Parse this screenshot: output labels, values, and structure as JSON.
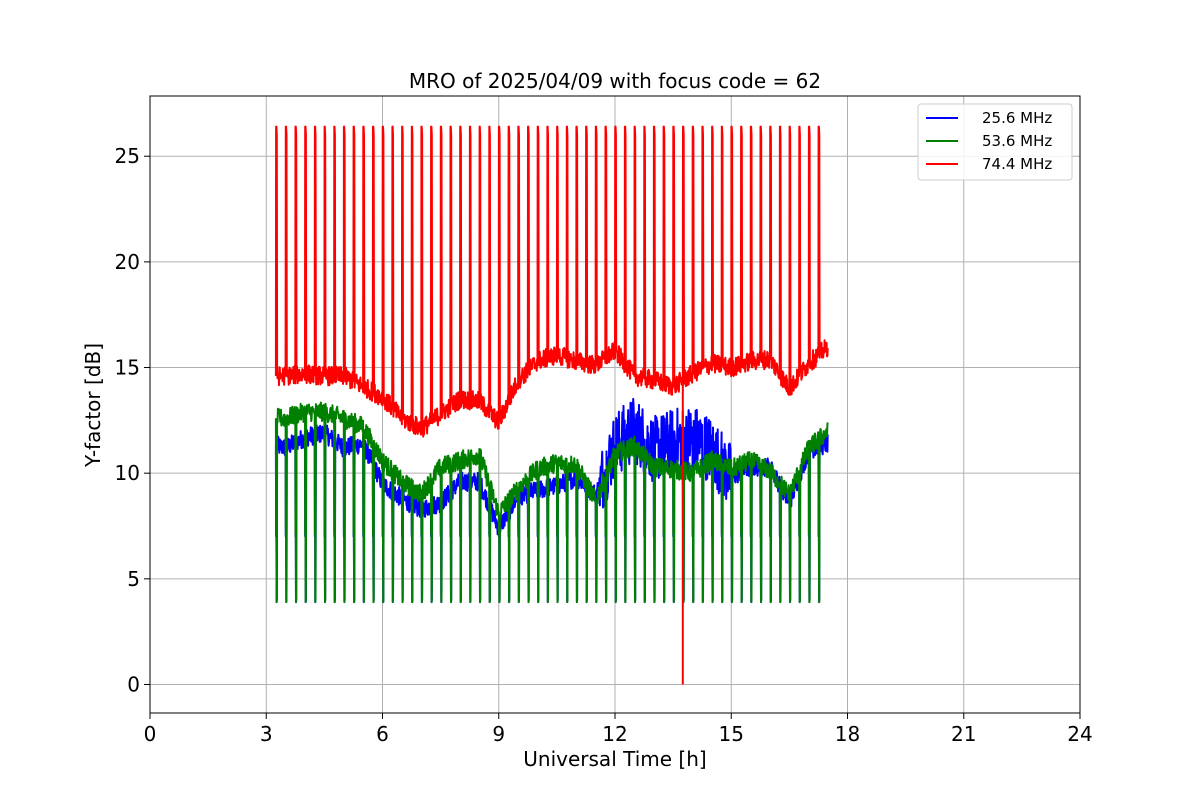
{
  "chart_data": {
    "type": "line",
    "title": "MRO of 2025/04/09 with focus code = 62",
    "xlabel": "Universal Time [h]",
    "ylabel": "Y-factor [dB]",
    "xlim": [
      0,
      24
    ],
    "ylim": [
      -1.35,
      27.85
    ],
    "x_ticks": [
      0,
      3,
      6,
      9,
      12,
      15,
      18,
      21,
      24
    ],
    "y_ticks": [
      0,
      5,
      10,
      15,
      20,
      25
    ],
    "x_tick_labels": [
      "0",
      "3",
      "6",
      "9",
      "12",
      "15",
      "18",
      "21",
      "24"
    ],
    "y_tick_labels": [
      "0",
      "5",
      "10",
      "15",
      "20",
      "25"
    ],
    "grid": true,
    "legend_position": "top-right",
    "data_range_hours": [
      3.25,
      17.5
    ],
    "calibration_period_hours": 0.25,
    "calibration_levels": {
      "peak": 26.4,
      "low": 3.9
    },
    "series": [
      {
        "name": "25.6 MHz",
        "color": "#0000ff",
        "cal_high": 7.0,
        "x": [
          3.25,
          3.5,
          4.0,
          4.5,
          5.0,
          5.5,
          6.0,
          6.5,
          7.0,
          7.5,
          8.0,
          8.5,
          9.0,
          9.5,
          10.0,
          10.5,
          11.0,
          11.5,
          12.0,
          12.5,
          13.0,
          13.5,
          14.0,
          14.5,
          15.0,
          15.5,
          16.0,
          16.5,
          17.0,
          17.5
        ],
        "y": [
          11.3,
          11.2,
          11.7,
          11.9,
          11.2,
          11.4,
          9.5,
          8.8,
          8.3,
          8.6,
          9.6,
          9.6,
          7.4,
          8.9,
          9.2,
          9.4,
          9.8,
          9.0,
          11.3,
          12.1,
          11.1,
          11.5,
          11.7,
          11.1,
          9.8,
          10.3,
          10.3,
          8.6,
          11.1,
          11.4
        ]
      },
      {
        "name": "53.6 MHz",
        "color": "#008000",
        "cal_high": 7.1,
        "x": [
          3.25,
          3.5,
          4.0,
          4.5,
          5.0,
          5.5,
          6.0,
          6.5,
          7.0,
          7.5,
          8.0,
          8.5,
          9.0,
          9.5,
          10.0,
          10.5,
          11.0,
          11.5,
          12.0,
          12.5,
          13.0,
          13.5,
          14.0,
          14.5,
          15.0,
          15.5,
          16.0,
          16.5,
          17.0,
          17.5
        ],
        "y": [
          12.6,
          12.6,
          12.9,
          12.9,
          12.6,
          12.2,
          10.6,
          9.6,
          9.0,
          10.3,
          10.6,
          10.9,
          8.1,
          9.3,
          10.2,
          10.5,
          10.4,
          8.7,
          10.9,
          11.3,
          10.3,
          10.2,
          10.0,
          10.6,
          10.2,
          10.6,
          10.1,
          9.0,
          11.2,
          12.0
        ]
      },
      {
        "name": "74.4 MHz",
        "color": "#ff0000",
        "cal_high": 26.4,
        "x": [
          3.25,
          3.5,
          4.0,
          4.5,
          5.0,
          5.5,
          6.0,
          6.5,
          7.0,
          7.5,
          8.0,
          8.5,
          9.0,
          9.5,
          10.0,
          10.5,
          11.0,
          11.5,
          12.0,
          12.5,
          13.0,
          13.5,
          14.0,
          14.5,
          15.0,
          15.5,
          16.0,
          16.5,
          17.0,
          17.5
        ],
        "y": [
          14.6,
          14.6,
          14.7,
          14.6,
          14.6,
          14.1,
          13.6,
          12.6,
          12.1,
          12.8,
          13.5,
          13.4,
          12.4,
          14.4,
          15.3,
          15.6,
          15.3,
          15.1,
          15.8,
          14.6,
          14.4,
          14.1,
          14.7,
          15.2,
          15.0,
          15.3,
          15.4,
          14.0,
          15.2,
          16.0
        ],
        "dropout": {
          "x": 13.75,
          "y": 0
        }
      }
    ]
  }
}
